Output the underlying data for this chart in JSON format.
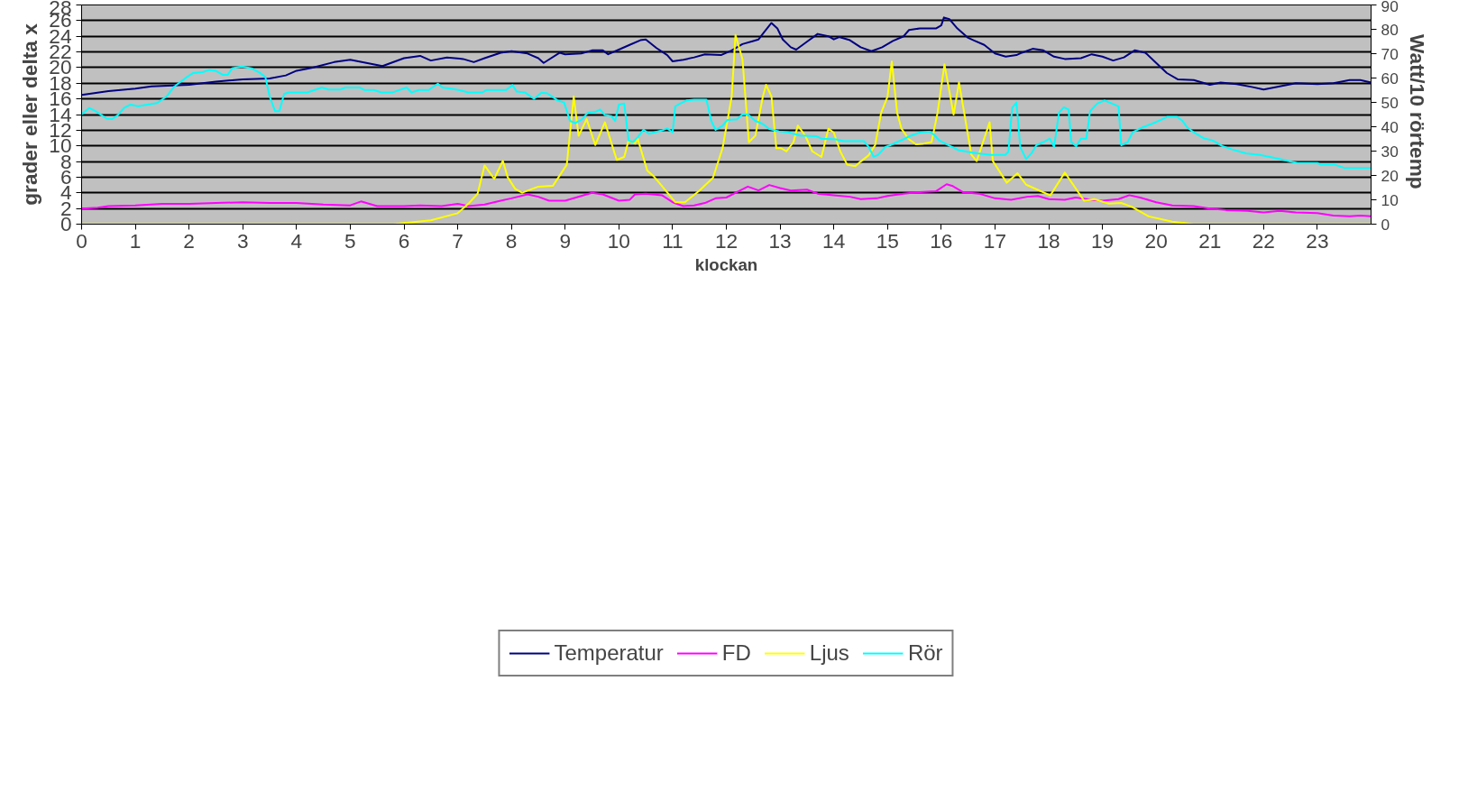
{
  "chart_data": {
    "type": "line",
    "xlabel": "klockan",
    "ylabel": "grader eller delta x",
    "y2label": "Watt/10  rörtemp",
    "xlim": [
      0,
      24
    ],
    "xticks": [
      0,
      1,
      2,
      3,
      4,
      5,
      6,
      7,
      8,
      9,
      10,
      11,
      12,
      13,
      14,
      15,
      16,
      17,
      18,
      19,
      20,
      21,
      22,
      23
    ],
    "ylim": [
      0,
      28
    ],
    "yticks": [
      0,
      2,
      4,
      6,
      8,
      10,
      12,
      14,
      16,
      18,
      20,
      22,
      24,
      26,
      28
    ],
    "y2lim": [
      0,
      90
    ],
    "y2ticks": [
      0,
      10,
      20,
      30,
      40,
      50,
      60,
      70,
      80,
      90
    ],
    "grid": "y",
    "legend": "bottom",
    "marker": "none",
    "line_style": "solid",
    "series": [
      {
        "name": "Temperatur",
        "color": "#000080",
        "x": [
          0,
          0.5,
          1,
          1.3,
          2,
          2.5,
          3,
          3.5,
          3.8,
          4,
          4.3,
          4.7,
          5,
          5.3,
          5.6,
          6,
          6.3,
          6.5,
          6.8,
          7.1,
          7.3,
          7.5,
          7.8,
          8,
          8.3,
          8.5,
          8.6,
          8.9,
          9,
          9.3,
          9.5,
          9.7,
          9.8,
          10,
          10.2,
          10.4,
          10.5,
          10.7,
          10.9,
          11,
          11.2,
          11.4,
          11.6,
          11.9,
          12.1,
          12.3,
          12.5,
          12.6,
          12.7,
          12.84,
          12.95,
          13.05,
          13.2,
          13.3,
          13.5,
          13.7,
          13.9,
          14,
          14.1,
          14.3,
          14.5,
          14.7,
          14.9,
          15.1,
          15.3,
          15.4,
          15.6,
          15.9,
          16,
          16.05,
          16.15,
          16.3,
          16.5,
          16.6,
          16.8,
          17,
          17.2,
          17.4,
          17.5,
          17.7,
          17.9,
          18.1,
          18.3,
          18.6,
          18.8,
          19,
          19.2,
          19.4,
          19.6,
          19.8,
          20,
          20.2,
          20.4,
          20.7,
          21,
          21.2,
          21.5,
          21.8,
          22,
          22.3,
          22.6,
          23,
          23.3,
          23.6,
          23.8,
          24
        ],
        "values": [
          16.5,
          17.0,
          17.3,
          17.6,
          17.8,
          18.2,
          18.5,
          18.6,
          19.0,
          19.6,
          20.0,
          20.7,
          21.0,
          20.6,
          20.2,
          21.2,
          21.5,
          20.9,
          21.3,
          21.1,
          20.7,
          21.2,
          21.9,
          22.1,
          21.8,
          21.2,
          20.6,
          21.9,
          21.7,
          21.8,
          22.2,
          22.2,
          21.7,
          22.3,
          22.9,
          23.5,
          23.6,
          22.5,
          21.6,
          20.8,
          21.0,
          21.3,
          21.7,
          21.6,
          22.2,
          23.0,
          23.4,
          23.6,
          24.5,
          25.7,
          25.0,
          23.6,
          22.6,
          22.3,
          23.3,
          24.3,
          24.0,
          23.6,
          23.9,
          23.5,
          22.6,
          22.1,
          22.6,
          23.4,
          24.0,
          24.8,
          25.0,
          25.0,
          25.4,
          26.4,
          26.2,
          25.0,
          23.8,
          23.5,
          22.9,
          21.8,
          21.4,
          21.6,
          21.9,
          22.4,
          22.2,
          21.4,
          21.1,
          21.2,
          21.7,
          21.4,
          20.9,
          21.3,
          22.2,
          21.9,
          20.6,
          19.3,
          18.5,
          18.4,
          17.8,
          18.1,
          17.9,
          17.5,
          17.2,
          17.6,
          18.0,
          17.9,
          18.0,
          18.4,
          18.4,
          18.1
        ]
      },
      {
        "name": "FD",
        "color": "#ff00ff",
        "x": [
          0,
          0.3,
          0.5,
          1,
          1.5,
          2,
          2.5,
          3,
          3.5,
          4,
          4.5,
          5,
          5.2,
          5.5,
          6,
          6.3,
          6.7,
          7,
          7.2,
          7.5,
          7.8,
          8,
          8.3,
          8.5,
          8.7,
          9,
          9.2,
          9.5,
          9.7,
          10,
          10.2,
          10.3,
          10.5,
          10.8,
          11,
          11.2,
          11.4,
          11.6,
          11.8,
          12,
          12.2,
          12.4,
          12.6,
          12.8,
          13,
          13.2,
          13.5,
          13.7,
          14,
          14.3,
          14.5,
          14.8,
          15,
          15.3,
          15.6,
          15.9,
          16.1,
          16.2,
          16.4,
          16.7,
          17,
          17.3,
          17.6,
          17.8,
          18,
          18.3,
          18.5,
          18.8,
          19,
          19.3,
          19.5,
          19.7,
          20,
          20.3,
          20.7,
          21,
          21.3,
          21.7,
          22,
          22.3,
          22.6,
          23,
          23.3,
          23.6,
          23.8,
          24
        ],
        "values": [
          2.0,
          2.1,
          2.3,
          2.4,
          2.6,
          2.6,
          2.7,
          2.8,
          2.7,
          2.7,
          2.5,
          2.4,
          2.9,
          2.3,
          2.3,
          2.4,
          2.3,
          2.6,
          2.3,
          2.5,
          3.0,
          3.3,
          3.8,
          3.5,
          3.0,
          3.0,
          3.4,
          4.0,
          3.8,
          3.0,
          3.1,
          3.8,
          3.9,
          3.7,
          2.8,
          2.3,
          2.4,
          2.7,
          3.3,
          3.4,
          4.1,
          4.8,
          4.3,
          5.0,
          4.6,
          4.3,
          4.4,
          3.9,
          3.7,
          3.5,
          3.2,
          3.3,
          3.6,
          3.9,
          4.1,
          4.2,
          5.1,
          4.9,
          4.1,
          3.9,
          3.3,
          3.1,
          3.5,
          3.6,
          3.2,
          3.1,
          3.4,
          3.1,
          3.0,
          3.2,
          3.7,
          3.4,
          2.8,
          2.4,
          2.3,
          2.0,
          1.8,
          1.7,
          1.5,
          1.7,
          1.5,
          1.4,
          1.1,
          1.0,
          1.1,
          1.0
        ]
      },
      {
        "name": "Ljus",
        "color": "#ffff00",
        "axis": "y2",
        "x": [
          0,
          5.8,
          6.5,
          7.0,
          7.2,
          7.37,
          7.5,
          7.68,
          7.84,
          7.93,
          8.07,
          8.2,
          8.5,
          8.77,
          9.03,
          9.16,
          9.25,
          9.4,
          9.56,
          9.74,
          9.96,
          10.1,
          10.18,
          10.3,
          10.35,
          10.53,
          10.65,
          10.8,
          11.05,
          11.23,
          11.5,
          11.75,
          11.93,
          12.1,
          12.17,
          12.3,
          12.42,
          12.54,
          12.68,
          12.74,
          12.84,
          12.93,
          13.02,
          13.12,
          13.25,
          13.33,
          13.47,
          13.6,
          13.77,
          13.9,
          14.0,
          14.12,
          14.25,
          14.4,
          14.5,
          14.65,
          14.77,
          14.88,
          15.0,
          15.08,
          15.18,
          15.26,
          15.39,
          15.53,
          15.67,
          15.82,
          15.93,
          16.06,
          16.23,
          16.33,
          16.56,
          16.66,
          16.9,
          16.96,
          17.22,
          17.42,
          17.58,
          18.03,
          18.3,
          18.66,
          18.85,
          19.12,
          19.35,
          19.55,
          19.86,
          20.3,
          20.7,
          24
        ],
        "values": [
          0,
          0,
          1.6,
          4.5,
          8.4,
          12.5,
          24.1,
          18.6,
          26,
          19.3,
          14.5,
          12.9,
          15.4,
          15.7,
          24.4,
          52.4,
          36.3,
          43.1,
          32.5,
          41.8,
          26.4,
          27.6,
          34.4,
          33.1,
          35,
          21.9,
          19.6,
          15.7,
          9,
          9,
          13.8,
          19,
          31.2,
          52.4,
          77.7,
          67.8,
          33.7,
          36.3,
          52.4,
          57.2,
          52.4,
          31.2,
          31.2,
          29.9,
          33.7,
          40.5,
          36.3,
          29.9,
          27.6,
          39.2,
          37.6,
          29.9,
          24.4,
          23.8,
          25.7,
          28.3,
          32.5,
          45.6,
          52.4,
          66.8,
          45.6,
          39.2,
          35,
          32.8,
          33.1,
          33.7,
          45.6,
          65.6,
          45,
          58.2,
          28.6,
          25.9,
          41.8,
          25.9,
          17,
          20.9,
          16.2,
          11.8,
          21.2,
          9.6,
          10.3,
          8.4,
          8.7,
          7.1,
          3.2,
          1,
          0,
          0
        ]
      },
      {
        "name": "Rör",
        "color": "#00ffff",
        "axis": "y2",
        "x": [
          0,
          0.14,
          0.26,
          0.47,
          0.56,
          0.67,
          0.79,
          0.91,
          1.05,
          1.4,
          1.58,
          1.72,
          1.84,
          1.96,
          2.07,
          2.25,
          2.37,
          2.49,
          2.63,
          2.72,
          2.8,
          2.98,
          3.16,
          3.3,
          3.42,
          3.5,
          3.6,
          3.68,
          3.77,
          3.86,
          4.2,
          4.47,
          4.6,
          4.82,
          4.91,
          5.18,
          5.26,
          5.44,
          5.58,
          5.79,
          6.05,
          6.14,
          6.28,
          6.46,
          6.63,
          6.72,
          6.84,
          7.02,
          7.2,
          7.46,
          7.54,
          7.9,
          8.02,
          8.1,
          8.25,
          8.42,
          8.56,
          8.67,
          8.86,
          8.98,
          9.09,
          9.19,
          9.3,
          9.42,
          9.56,
          9.65,
          9.74,
          9.86,
          9.93,
          10.0,
          10.1,
          10.18,
          10.26,
          10.35,
          10.46,
          10.56,
          10.79,
          10.9,
          11.0,
          11.05,
          11.14,
          11.26,
          11.4,
          11.63,
          11.72,
          11.8,
          11.93,
          12.02,
          12.2,
          12.3,
          12.4,
          12.54,
          12.68,
          12.8,
          12.98,
          13.16,
          13.37,
          13.68,
          13.77,
          14.04,
          14.18,
          14.56,
          14.65,
          14.74,
          14.82,
          14.96,
          15.05,
          15.18,
          15.32,
          15.44,
          15.61,
          15.79,
          15.88,
          15.96,
          16.14,
          16.32,
          16.49,
          16.67,
          16.93,
          17.19,
          17.25,
          17.32,
          17.4,
          17.47,
          17.58,
          17.68,
          17.77,
          17.9,
          18.02,
          18.1,
          18.19,
          18.28,
          18.37,
          18.42,
          18.51,
          18.6,
          18.7,
          18.77,
          18.9,
          19.04,
          19.16,
          19.3,
          19.35,
          19.47,
          19.56,
          19.74,
          19.91,
          20.09,
          20.21,
          20.39,
          20.49,
          20.58,
          20.7,
          20.88,
          21.05,
          21.23,
          21.4,
          21.67,
          21.93,
          22.14,
          22.37,
          22.63,
          23.0,
          23.07,
          23.33,
          23.5,
          24
        ],
        "values": [
          45.1,
          47.7,
          46.4,
          43.3,
          43.1,
          44.7,
          47.7,
          49.1,
          48.4,
          49.7,
          52.4,
          56.4,
          58.4,
          60.4,
          62,
          62.4,
          63.3,
          63,
          61.3,
          61.3,
          64,
          64.7,
          64,
          62.4,
          60.4,
          52.4,
          46.4,
          46.4,
          53.5,
          54.1,
          54.1,
          56.1,
          55.3,
          55.3,
          56.1,
          56.1,
          55.1,
          55.1,
          54.1,
          54.1,
          56.1,
          54.1,
          55.1,
          55.1,
          57.7,
          56.1,
          55.7,
          55.1,
          54.1,
          54.1,
          55.1,
          55.1,
          57.1,
          54.4,
          54.1,
          51.5,
          54,
          53.7,
          50.8,
          50,
          42.4,
          41.5,
          42.8,
          45.7,
          46.1,
          47.1,
          44.8,
          44.4,
          42.4,
          49.1,
          49.5,
          34.4,
          33.7,
          35.7,
          38.8,
          37.1,
          38.4,
          39.3,
          37.7,
          48.4,
          49.5,
          50.8,
          51.1,
          51.1,
          42.4,
          38.7,
          40.4,
          42.8,
          43.1,
          45.1,
          45.1,
          42.4,
          41.1,
          39.1,
          38.1,
          37.7,
          36.4,
          36.1,
          35.1,
          34.8,
          34.1,
          34.1,
          31.7,
          27.7,
          28.4,
          31.7,
          32.4,
          33.7,
          35.1,
          36.4,
          37.7,
          38.0,
          36.4,
          34.4,
          32.4,
          30.4,
          29.7,
          29.1,
          28.4,
          28.4,
          29.7,
          47.7,
          50,
          31.7,
          26.7,
          29.1,
          32.4,
          33.7,
          35.1,
          31.7,
          45.7,
          48,
          47.1,
          33.7,
          32,
          35.1,
          35.1,
          46.4,
          49.5,
          50.8,
          49.7,
          48.4,
          32.4,
          33.7,
          37.7,
          39.7,
          41.1,
          42.8,
          44.1,
          44.1,
          42.4,
          39.7,
          37.7,
          35.3,
          34.4,
          32.1,
          30.8,
          29.1,
          28.4,
          27.5,
          26.4,
          25.1,
          25.1,
          24.4,
          24.4,
          23.1,
          23.1
        ]
      }
    ]
  }
}
